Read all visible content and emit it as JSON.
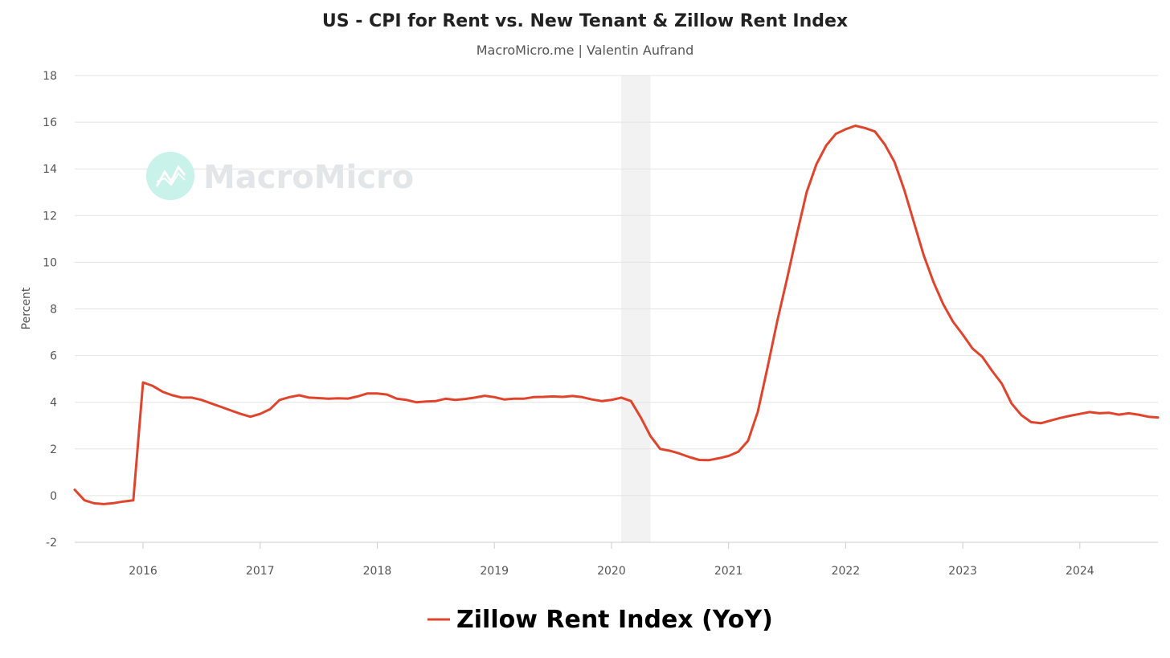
{
  "chart_data": {
    "type": "line",
    "title": "US - CPI for Rent vs. New Tenant & Zillow Rent Index",
    "subtitle": "MacroMicro.me | Valentin Aufrand",
    "ylabel": "Percent",
    "xlabel": "",
    "ylim": [
      -2,
      18
    ],
    "yticks": [
      -2,
      0,
      2,
      4,
      6,
      8,
      10,
      12,
      14,
      16,
      18
    ],
    "xlim": [
      "2015-06",
      "2024-09"
    ],
    "xticks": [
      "2016",
      "2017",
      "2018",
      "2019",
      "2020",
      "2021",
      "2022",
      "2023",
      "2024"
    ],
    "grid": true,
    "legend_position": "bottom-center",
    "watermark": "MacroMicro",
    "shaded_regions": [
      {
        "start": "2020-02",
        "end": "2020-05",
        "color": "#f2f2f2"
      }
    ],
    "series": [
      {
        "name": "Zillow Rent Index (YoY)",
        "color": "#e0442c",
        "points": [
          [
            "2015-06",
            0.25
          ],
          [
            "2015-07",
            -0.2
          ],
          [
            "2015-08",
            -0.33
          ],
          [
            "2015-09",
            -0.36
          ],
          [
            "2015-10",
            -0.32
          ],
          [
            "2015-11",
            -0.25
          ],
          [
            "2015-12",
            -0.2
          ],
          [
            "2016-01",
            4.85
          ],
          [
            "2016-02",
            4.7
          ],
          [
            "2016-03",
            4.45
          ],
          [
            "2016-04",
            4.3
          ],
          [
            "2016-05",
            4.2
          ],
          [
            "2016-06",
            4.2
          ],
          [
            "2016-07",
            4.1
          ],
          [
            "2016-08",
            3.95
          ],
          [
            "2016-09",
            3.8
          ],
          [
            "2016-10",
            3.65
          ],
          [
            "2016-11",
            3.5
          ],
          [
            "2016-12",
            3.38
          ],
          [
            "2017-01",
            3.5
          ],
          [
            "2017-02",
            3.7
          ],
          [
            "2017-03",
            4.1
          ],
          [
            "2017-04",
            4.22
          ],
          [
            "2017-05",
            4.3
          ],
          [
            "2017-06",
            4.2
          ],
          [
            "2017-07",
            4.18
          ],
          [
            "2017-08",
            4.15
          ],
          [
            "2017-09",
            4.17
          ],
          [
            "2017-10",
            4.16
          ],
          [
            "2017-11",
            4.25
          ],
          [
            "2017-12",
            4.38
          ],
          [
            "2018-01",
            4.38
          ],
          [
            "2018-02",
            4.33
          ],
          [
            "2018-03",
            4.15
          ],
          [
            "2018-04",
            4.1
          ],
          [
            "2018-05",
            4.0
          ],
          [
            "2018-06",
            4.03
          ],
          [
            "2018-07",
            4.05
          ],
          [
            "2018-08",
            4.15
          ],
          [
            "2018-09",
            4.1
          ],
          [
            "2018-10",
            4.14
          ],
          [
            "2018-11",
            4.2
          ],
          [
            "2018-12",
            4.28
          ],
          [
            "2019-01",
            4.22
          ],
          [
            "2019-02",
            4.12
          ],
          [
            "2019-03",
            4.15
          ],
          [
            "2019-04",
            4.15
          ],
          [
            "2019-05",
            4.22
          ],
          [
            "2019-06",
            4.23
          ],
          [
            "2019-07",
            4.25
          ],
          [
            "2019-08",
            4.23
          ],
          [
            "2019-09",
            4.27
          ],
          [
            "2019-10",
            4.22
          ],
          [
            "2019-11",
            4.12
          ],
          [
            "2019-12",
            4.05
          ],
          [
            "2020-01",
            4.1
          ],
          [
            "2020-02",
            4.2
          ],
          [
            "2020-03",
            4.05
          ],
          [
            "2020-04",
            3.35
          ],
          [
            "2020-05",
            2.55
          ],
          [
            "2020-06",
            2.0
          ],
          [
            "2020-07",
            1.92
          ],
          [
            "2020-08",
            1.8
          ],
          [
            "2020-09",
            1.65
          ],
          [
            "2020-10",
            1.53
          ],
          [
            "2020-11",
            1.52
          ],
          [
            "2020-12",
            1.6
          ],
          [
            "2021-01",
            1.7
          ],
          [
            "2021-02",
            1.88
          ],
          [
            "2021-03",
            2.35
          ],
          [
            "2021-04",
            3.6
          ],
          [
            "2021-05",
            5.5
          ],
          [
            "2021-06",
            7.5
          ],
          [
            "2021-07",
            9.3
          ],
          [
            "2021-08",
            11.2
          ],
          [
            "2021-09",
            13.0
          ],
          [
            "2021-10",
            14.2
          ],
          [
            "2021-11",
            15.0
          ],
          [
            "2021-12",
            15.5
          ],
          [
            "2022-01",
            15.7
          ],
          [
            "2022-02",
            15.85
          ],
          [
            "2022-03",
            15.75
          ],
          [
            "2022-04",
            15.6
          ],
          [
            "2022-05",
            15.05
          ],
          [
            "2022-06",
            14.3
          ],
          [
            "2022-07",
            13.1
          ],
          [
            "2022-08",
            11.7
          ],
          [
            "2022-09",
            10.3
          ],
          [
            "2022-10",
            9.15
          ],
          [
            "2022-11",
            8.2
          ],
          [
            "2022-12",
            7.45
          ],
          [
            "2023-01",
            6.9
          ],
          [
            "2023-02",
            6.3
          ],
          [
            "2023-03",
            5.95
          ],
          [
            "2023-04",
            5.35
          ],
          [
            "2023-05",
            4.8
          ],
          [
            "2023-06",
            3.95
          ],
          [
            "2023-07",
            3.45
          ],
          [
            "2023-08",
            3.15
          ],
          [
            "2023-09",
            3.1
          ],
          [
            "2023-10",
            3.22
          ],
          [
            "2023-11",
            3.33
          ],
          [
            "2023-12",
            3.42
          ],
          [
            "2024-01",
            3.5
          ],
          [
            "2024-02",
            3.58
          ],
          [
            "2024-03",
            3.53
          ],
          [
            "2024-04",
            3.55
          ],
          [
            "2024-05",
            3.47
          ],
          [
            "2024-06",
            3.53
          ],
          [
            "2024-07",
            3.47
          ],
          [
            "2024-08",
            3.38
          ],
          [
            "2024-09",
            3.35
          ]
        ]
      }
    ]
  }
}
